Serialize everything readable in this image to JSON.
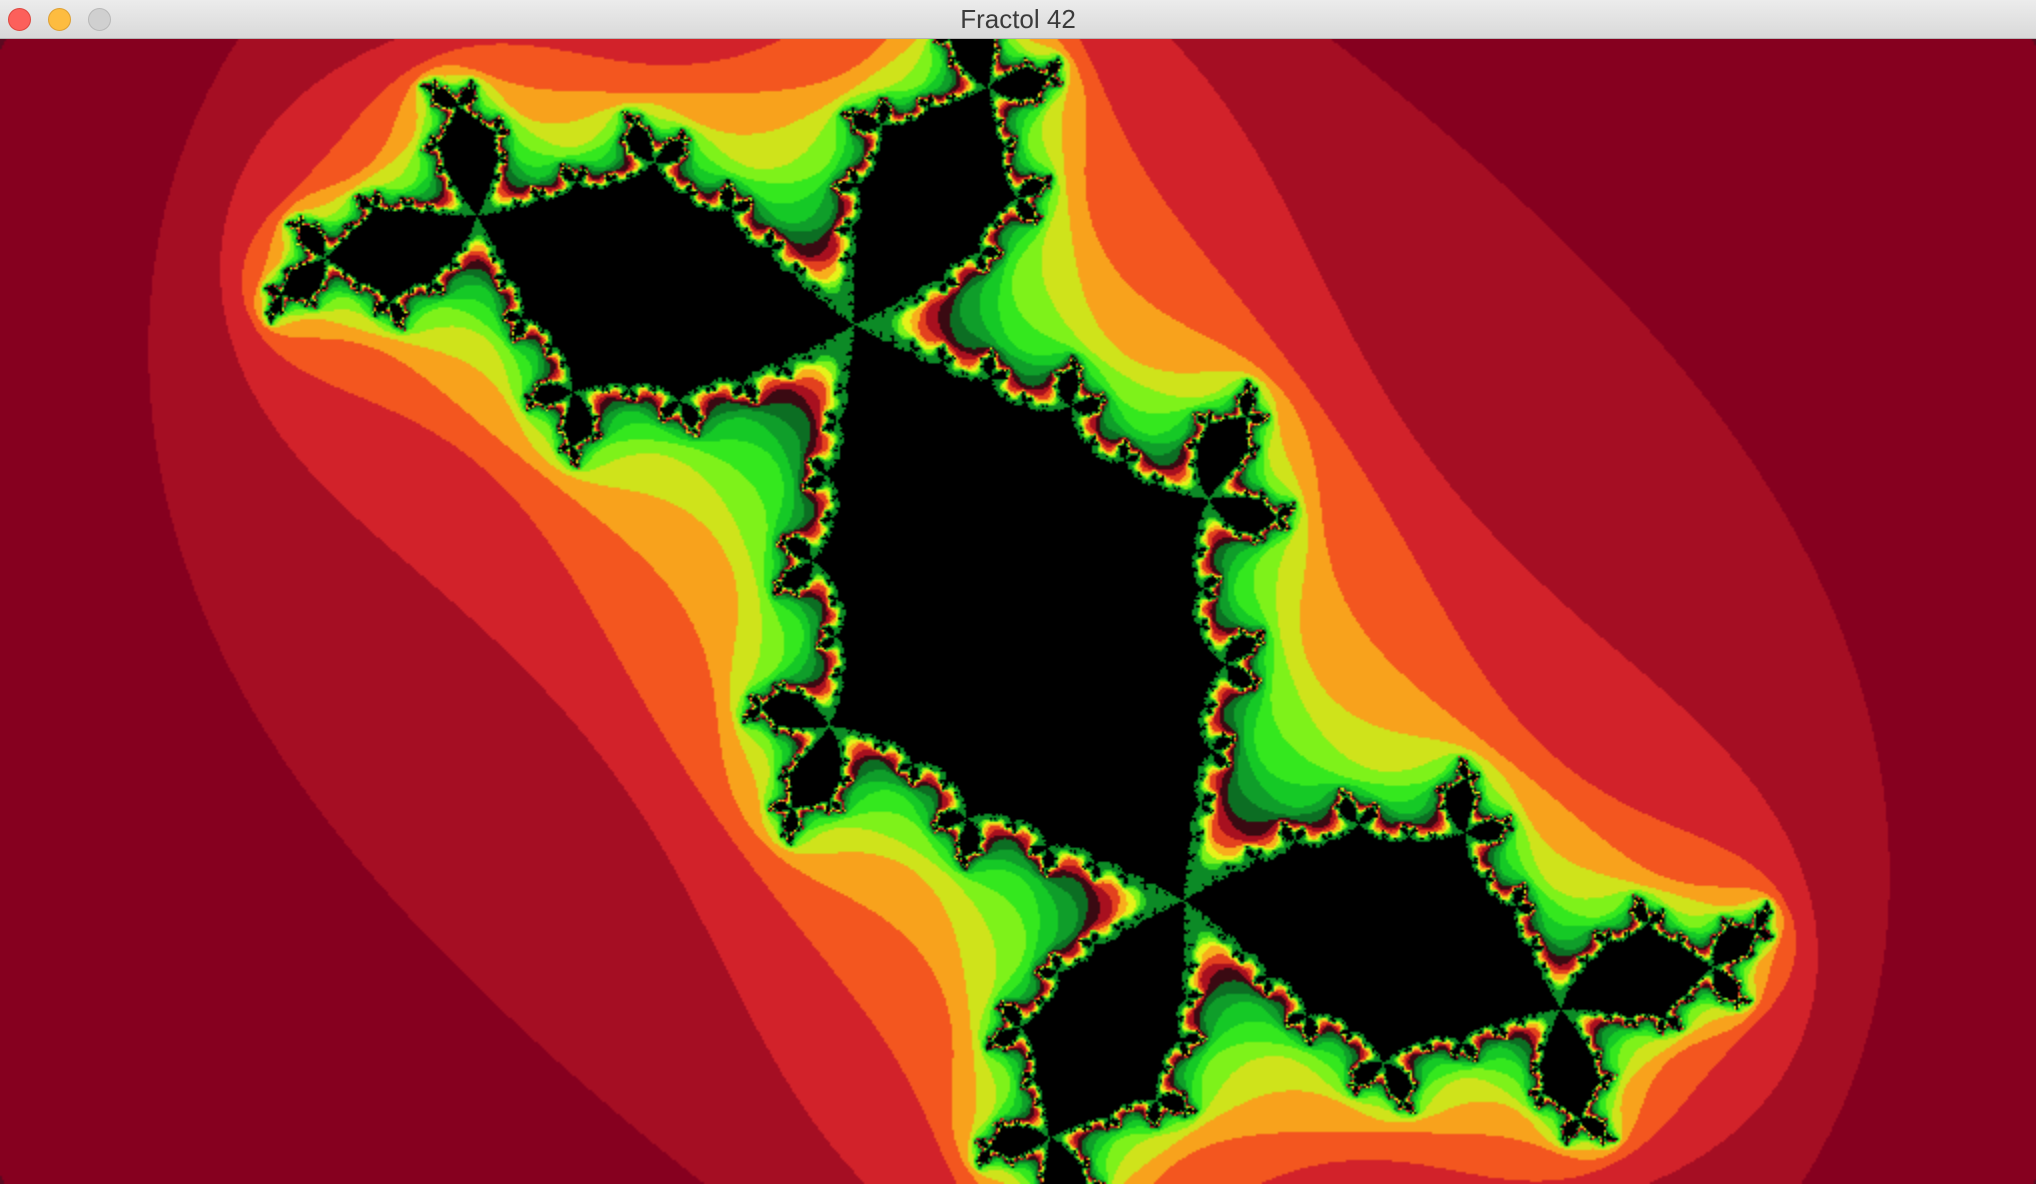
{
  "window": {
    "title": "Fractol 42"
  },
  "render": {
    "fractal_kind": "julia",
    "c_real": -0.12,
    "c_imag": 0.775,
    "max_iterations": 60,
    "background_color": "#5c0920",
    "palette": [
      "#5c0920",
      "#86001f",
      "#a50e23",
      "#d2222a",
      "#f3561f",
      "#f8a21c",
      "#cfe31b",
      "#7ef21a",
      "#34e81e",
      "#15c926",
      "#0f9e2a",
      "#0c6e23",
      "#3a0a12",
      "#a8101f",
      "#e3411e",
      "#f8ae1c",
      "#e6f21a",
      "#7ef21a",
      "#2fd31f",
      "#0c8a26"
    ],
    "inside_color": "#000000"
  }
}
